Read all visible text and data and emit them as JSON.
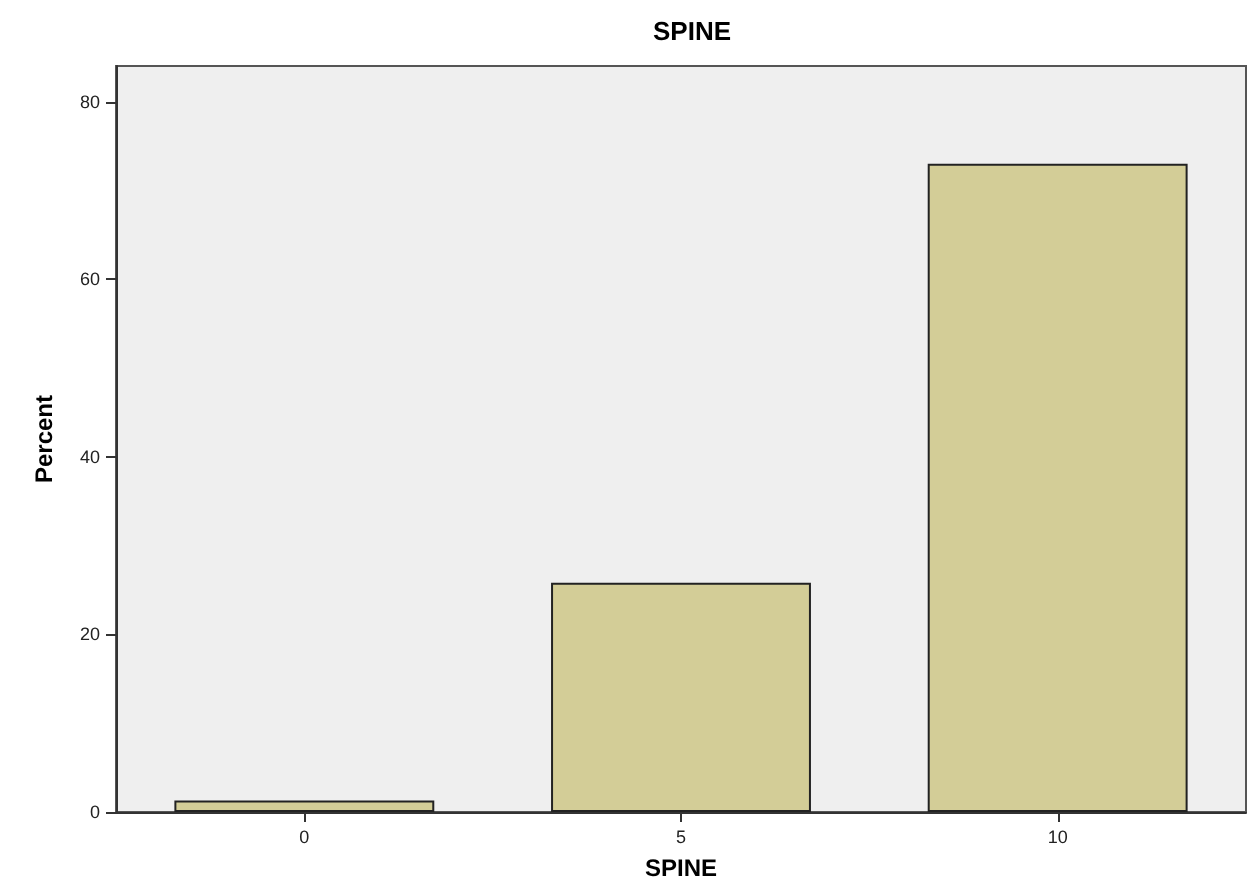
{
  "chart_data": {
    "type": "bar",
    "title": "SPINE",
    "xlabel": "SPINE",
    "ylabel": "Percent",
    "categories": [
      "0",
      "5",
      "10"
    ],
    "values": [
      1.3,
      25.8,
      73.0
    ],
    "color": "#d3cd97",
    "ylim": [
      0,
      84
    ],
    "yticks": [
      0,
      20,
      40,
      60,
      80
    ],
    "grid": false
  }
}
